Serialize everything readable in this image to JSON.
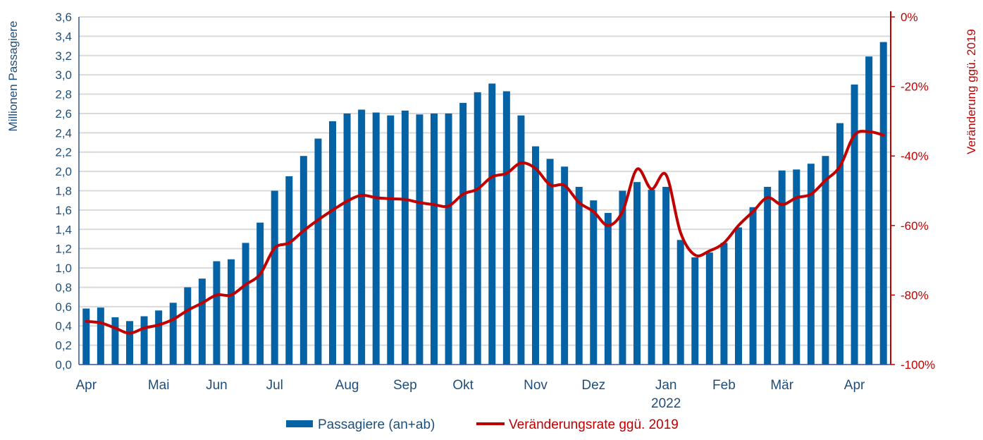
{
  "chart_data": {
    "type": "bar+line",
    "title": "",
    "ylabel": "Millionen Passagiere",
    "y2label": "Veränderung ggü. 2019",
    "ylim": [
      0,
      3.6
    ],
    "y2lim": [
      -100,
      0
    ],
    "yticks": [
      "0,0",
      "0,2",
      "0,4",
      "0,6",
      "0,8",
      "1,0",
      "1,2",
      "1,4",
      "1,6",
      "1,8",
      "2,0",
      "2,2",
      "2,4",
      "2,6",
      "2,8",
      "3,0",
      "3,2",
      "3,4",
      "3,6"
    ],
    "y2ticks": [
      "-100%",
      "-80%",
      "-60%",
      "-40%",
      "-20%",
      "0%"
    ],
    "month_labels": [
      {
        "label": "Apr",
        "index": 0
      },
      {
        "label": "Mai",
        "index": 5
      },
      {
        "label": "Jun",
        "index": 9
      },
      {
        "label": "Jul",
        "index": 13
      },
      {
        "label": "Aug",
        "index": 18
      },
      {
        "label": "Sep",
        "index": 22
      },
      {
        "label": "Okt",
        "index": 26
      },
      {
        "label": "Nov",
        "index": 31
      },
      {
        "label": "Dez",
        "index": 35
      },
      {
        "label": "Jan",
        "index": 40
      },
      {
        "label": "Feb",
        "index": 44
      },
      {
        "label": "Mär",
        "index": 48
      },
      {
        "label": "Apr",
        "index": 53
      }
    ],
    "year_label": {
      "label": "2022",
      "index": 40
    },
    "grid": true,
    "legend_position": "bottom",
    "series": [
      {
        "name": "Passagiere (an+ab)",
        "type": "bar",
        "color": "#0563a5",
        "axis": "left",
        "values": [
          0.58,
          0.59,
          0.49,
          0.45,
          0.5,
          0.56,
          0.64,
          0.8,
          0.89,
          1.07,
          1.09,
          1.26,
          1.47,
          1.8,
          1.95,
          2.16,
          2.34,
          2.52,
          2.6,
          2.64,
          2.61,
          2.58,
          2.63,
          2.59,
          2.6,
          2.6,
          2.71,
          2.82,
          2.91,
          2.83,
          2.58,
          2.26,
          2.13,
          2.05,
          1.84,
          1.7,
          1.57,
          1.8,
          1.89,
          1.81,
          1.84,
          1.29,
          1.11,
          1.16,
          1.26,
          1.42,
          1.63,
          1.84,
          2.01,
          2.02,
          2.08,
          2.16,
          2.5,
          2.9,
          3.19,
          3.34
        ]
      },
      {
        "name": "Veränderungsrate ggü. 2019",
        "type": "line",
        "color": "#c00000",
        "axis": "right",
        "values": [
          -87.6,
          -88,
          -89.5,
          -91,
          -89.5,
          -88.6,
          -87,
          -84.4,
          -82.3,
          -80,
          -80,
          -77,
          -74,
          -66.5,
          -65,
          -61.5,
          -58.4,
          -55.6,
          -53,
          -51.3,
          -52,
          -52.3,
          -52.5,
          -53.4,
          -54,
          -54.4,
          -51,
          -49.5,
          -46,
          -45,
          -42,
          -43.6,
          -48.3,
          -48.5,
          -53.4,
          -56,
          -60,
          -56,
          -43.8,
          -49.5,
          -45.4,
          -62,
          -68.5,
          -67.3,
          -65,
          -60,
          -56,
          -52,
          -54,
          -52,
          -51,
          -47,
          -43,
          -34,
          -33,
          -34
        ]
      }
    ]
  }
}
